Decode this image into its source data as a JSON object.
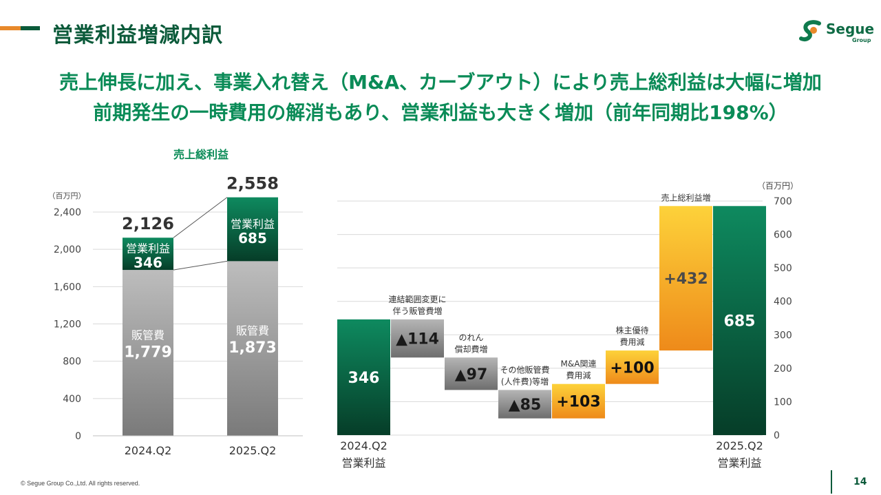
{
  "header": {
    "title": "営業利益増減内訳",
    "logo_text": "Segue",
    "logo_sub": "Group"
  },
  "headline": {
    "line1": "売上伸長に加え、事業入れ替え（M&A、カーブアウト）により売上総利益は大幅に増加",
    "line2": "前期発生の一時費用の解消もあり、営業利益も大きく増加（前年同期比198%）"
  },
  "footer": {
    "copyright": "© Segue Group Co.,Ltd. All rights reserved.",
    "page": "14"
  },
  "chart_data": [
    {
      "type": "bar",
      "title": "売上総利益",
      "unit": "（百万円）",
      "ylim": [
        0,
        2400
      ],
      "yticks": [
        "0",
        "400",
        "800",
        "1,200",
        "1,600",
        "2,000",
        "2,400"
      ],
      "categories": [
        "2024.Q2",
        "2025.Q2"
      ],
      "totals": [
        "2,126",
        "2,558"
      ],
      "series": [
        {
          "name": "販管費",
          "values": [
            1779,
            1873
          ],
          "labels": [
            "1,779",
            "1,873"
          ],
          "color_top": "#bdbdbd",
          "color_bottom": "#7a7a7a"
        },
        {
          "name": "営業利益",
          "values": [
            346,
            685
          ],
          "labels": [
            "346",
            "685"
          ],
          "color_top": "#0e8a5f",
          "color_bottom": "#063d28"
        }
      ]
    },
    {
      "type": "bar",
      "subtype": "waterfall",
      "unit": "（百万円）",
      "ylim": [
        0,
        700
      ],
      "yticks": [
        "0",
        "100",
        "200",
        "300",
        "400",
        "500",
        "600",
        "700"
      ],
      "steps": [
        {
          "label_lines": [
            "2024.Q2",
            "営業利益"
          ],
          "value": 346,
          "text": "346",
          "kind": "total"
        },
        {
          "label_lines": [
            "連結範囲変更に",
            "伴う販管費増"
          ],
          "value": -114,
          "text": "▲114",
          "kind": "decrease"
        },
        {
          "label_lines": [
            "のれん",
            "償却費増"
          ],
          "value": -97,
          "text": "▲97",
          "kind": "decrease"
        },
        {
          "label_lines": [
            "その他販管費",
            "(人件費)等増"
          ],
          "value": -85,
          "text": "▲85",
          "kind": "decrease"
        },
        {
          "label_lines": [
            "M&A関連",
            "費用減"
          ],
          "value": 103,
          "text": "+103",
          "kind": "increase"
        },
        {
          "label_lines": [
            "株主優待",
            "費用減"
          ],
          "value": 100,
          "text": "+100",
          "kind": "increase"
        },
        {
          "label_lines": [
            "売上総利益増"
          ],
          "value": 432,
          "text": "+432",
          "kind": "increase"
        },
        {
          "label_lines": [
            "2025.Q2",
            "営業利益"
          ],
          "value": 685,
          "text": "685",
          "kind": "total"
        }
      ]
    }
  ]
}
